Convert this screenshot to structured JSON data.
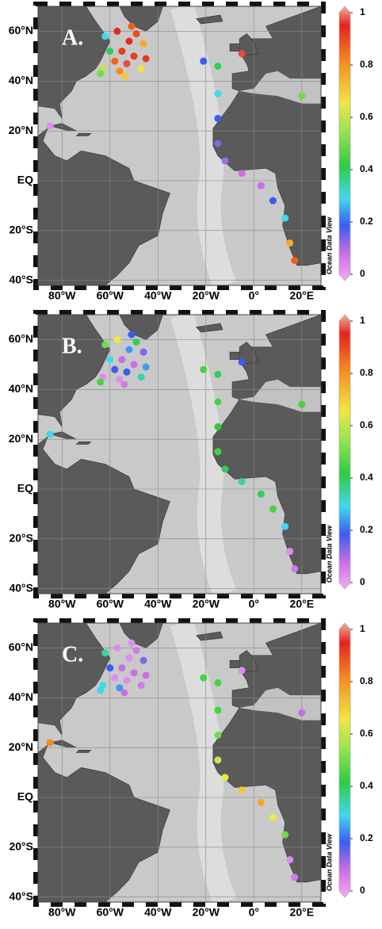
{
  "chart_data": [
    {
      "type": "scatter",
      "title": "A.",
      "watermark": "Ocean Data View",
      "xlim": [
        -90,
        28
      ],
      "ylim": [
        -42,
        70
      ],
      "xticks": [
        {
          "value": -80,
          "label": "80°W"
        },
        {
          "value": -60,
          "label": "60°W"
        },
        {
          "value": -40,
          "label": "40°W"
        },
        {
          "value": -20,
          "label": "20°W"
        },
        {
          "value": 0,
          "label": "0°"
        },
        {
          "value": 20,
          "label": "20°E"
        }
      ],
      "yticks": [
        {
          "value": 60,
          "label": "60°N"
        },
        {
          "value": 40,
          "label": "40°N"
        },
        {
          "value": 20,
          "label": "20°N"
        },
        {
          "value": 0,
          "label": "EQ"
        },
        {
          "value": -20,
          "label": "20°S"
        },
        {
          "value": -40,
          "label": "40°S"
        }
      ],
      "grid": true,
      "colorbar_ticks": [
        1,
        0.8,
        0.6,
        0.4,
        0.2,
        0
      ],
      "colormap": [
        [
          0,
          "#f7a8f7"
        ],
        [
          0.1,
          "#c86ee6"
        ],
        [
          0.2,
          "#3a5cf0"
        ],
        [
          0.3,
          "#3fd8f0"
        ],
        [
          0.42,
          "#2ecc40"
        ],
        [
          0.55,
          "#9be552"
        ],
        [
          0.65,
          "#f2e640"
        ],
        [
          0.8,
          "#f58a1e"
        ],
        [
          0.93,
          "#e3231f"
        ],
        [
          1,
          "#f3b09a"
        ]
      ],
      "x": [
        -63,
        -58,
        -55,
        -52,
        -49,
        -46,
        -60,
        -56,
        -53,
        -50,
        -47,
        -62,
        -57,
        -54,
        -51,
        -64,
        -45,
        -21,
        -5,
        -15,
        -15,
        -15,
        -15,
        -12,
        -5,
        3,
        8,
        13,
        15,
        17,
        -85,
        20
      ],
      "y": [
        45,
        48,
        52,
        56,
        59,
        55,
        52,
        44,
        47,
        50,
        45,
        58,
        60,
        42,
        62,
        43,
        49,
        48,
        51,
        46,
        35,
        25,
        15,
        8,
        3,
        -2,
        -8,
        -15,
        -25,
        -32,
        22,
        34
      ],
      "values": [
        0.6,
        0.85,
        0.9,
        0.92,
        0.88,
        0.75,
        0.4,
        0.8,
        0.95,
        0.9,
        0.65,
        0.3,
        0.92,
        0.7,
        0.85,
        0.5,
        0.9,
        0.2,
        0.95,
        0.4,
        0.3,
        0.2,
        0.15,
        0.12,
        0.1,
        0.1,
        0.2,
        0.3,
        0.75,
        0.85,
        0.05,
        0.5
      ]
    },
    {
      "type": "scatter",
      "title": "B.",
      "watermark": "Ocean Data View",
      "xlim": [
        -90,
        28
      ],
      "ylim": [
        -42,
        70
      ],
      "xticks": [
        {
          "value": -80,
          "label": "80°W"
        },
        {
          "value": -60,
          "label": "60°W"
        },
        {
          "value": -40,
          "label": "40°W"
        },
        {
          "value": -20,
          "label": "20°W"
        },
        {
          "value": 0,
          "label": "0°"
        },
        {
          "value": 20,
          "label": "20°E"
        }
      ],
      "yticks": [
        {
          "value": 60,
          "label": "60°N"
        },
        {
          "value": 40,
          "label": "40°N"
        },
        {
          "value": 20,
          "label": "20°N"
        },
        {
          "value": 0,
          "label": "EQ"
        },
        {
          "value": -20,
          "label": "20°S"
        },
        {
          "value": -40,
          "label": "40°S"
        }
      ],
      "grid": true,
      "colorbar_ticks": [
        1,
        0.8,
        0.6,
        0.4,
        0.2,
        0
      ],
      "colormap": [
        [
          0,
          "#f7a8f7"
        ],
        [
          0.1,
          "#c86ee6"
        ],
        [
          0.2,
          "#3a5cf0"
        ],
        [
          0.3,
          "#3fd8f0"
        ],
        [
          0.42,
          "#2ecc40"
        ],
        [
          0.55,
          "#9be552"
        ],
        [
          0.65,
          "#f2e640"
        ],
        [
          0.8,
          "#f58a1e"
        ],
        [
          0.93,
          "#e3231f"
        ],
        [
          1,
          "#f3b09a"
        ]
      ],
      "x": [
        -63,
        -58,
        -55,
        -52,
        -49,
        -46,
        -60,
        -56,
        -53,
        -50,
        -47,
        -62,
        -57,
        -54,
        -51,
        -64,
        -45,
        -21,
        -5,
        -15,
        -15,
        -15,
        -15,
        -12,
        -5,
        3,
        8,
        13,
        15,
        17,
        -85,
        20
      ],
      "y": [
        45,
        48,
        52,
        56,
        59,
        55,
        52,
        44,
        47,
        50,
        45,
        58,
        60,
        42,
        62,
        43,
        49,
        48,
        51,
        46,
        35,
        25,
        15,
        8,
        3,
        -2,
        -8,
        -15,
        -25,
        -32,
        22,
        34
      ],
      "values": [
        0.05,
        0.2,
        0.1,
        0.25,
        0.4,
        0.15,
        0.3,
        0.05,
        0.2,
        0.1,
        0.35,
        0.5,
        0.65,
        0.08,
        0.2,
        0.45,
        0.25,
        0.45,
        0.2,
        0.4,
        0.45,
        0.42,
        0.45,
        0.4,
        0.35,
        0.4,
        0.45,
        0.3,
        0.05,
        0.08,
        0.3,
        0.45
      ]
    },
    {
      "type": "scatter",
      "title": "C.",
      "watermark": "Ocean Data View",
      "xlim": [
        -90,
        28
      ],
      "ylim": [
        -42,
        70
      ],
      "xticks": [
        {
          "value": -80,
          "label": "80°W"
        },
        {
          "value": -60,
          "label": "60°W"
        },
        {
          "value": -40,
          "label": "40°W"
        },
        {
          "value": -20,
          "label": "20°W"
        },
        {
          "value": 0,
          "label": "0°"
        },
        {
          "value": 20,
          "label": "20°E"
        }
      ],
      "yticks": [
        {
          "value": 60,
          "label": "60°N"
        },
        {
          "value": 40,
          "label": "40°N"
        },
        {
          "value": 20,
          "label": "20°N"
        },
        {
          "value": 0,
          "label": "EQ"
        },
        {
          "value": -20,
          "label": "20°S"
        },
        {
          "value": -40,
          "label": "40°S"
        }
      ],
      "grid": true,
      "colorbar_ticks": [
        1,
        0.8,
        0.6,
        0.4,
        0.2,
        0
      ],
      "colormap": [
        [
          0,
          "#f7a8f7"
        ],
        [
          0.1,
          "#c86ee6"
        ],
        [
          0.2,
          "#3a5cf0"
        ],
        [
          0.3,
          "#3fd8f0"
        ],
        [
          0.42,
          "#2ecc40"
        ],
        [
          0.55,
          "#9be552"
        ],
        [
          0.65,
          "#f2e640"
        ],
        [
          0.8,
          "#f58a1e"
        ],
        [
          0.93,
          "#e3231f"
        ],
        [
          1,
          "#f3b09a"
        ]
      ],
      "x": [
        -63,
        -58,
        -55,
        -52,
        -49,
        -46,
        -60,
        -56,
        -53,
        -50,
        -47,
        -62,
        -57,
        -54,
        -51,
        -64,
        -45,
        -21,
        -5,
        -15,
        -15,
        -15,
        -15,
        -12,
        -5,
        3,
        8,
        13,
        15,
        17,
        -85,
        20
      ],
      "y": [
        45,
        48,
        52,
        56,
        59,
        55,
        52,
        44,
        47,
        50,
        45,
        58,
        60,
        42,
        62,
        43,
        49,
        48,
        51,
        46,
        35,
        25,
        15,
        8,
        3,
        -2,
        -8,
        -15,
        -25,
        -32,
        22,
        34
      ],
      "values": [
        0.3,
        0.05,
        0.1,
        0.05,
        0.08,
        0.15,
        0.2,
        0.25,
        0.05,
        0.1,
        0.08,
        0.35,
        0.05,
        0.1,
        0.05,
        0.3,
        0.1,
        0.45,
        0.05,
        0.45,
        0.45,
        0.5,
        0.6,
        0.65,
        0.7,
        0.75,
        0.65,
        0.5,
        0.05,
        0.08,
        0.8,
        0.1
      ]
    }
  ]
}
